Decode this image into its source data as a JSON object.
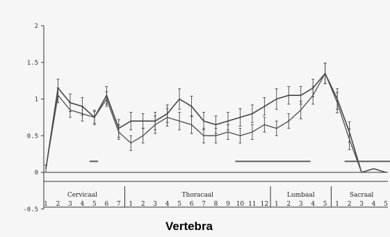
{
  "chart_data": {
    "type": "line",
    "xlabel": "Vertebra",
    "ylabel": "",
    "ylim": [
      -0.5,
      2
    ],
    "yticks": [
      "2",
      "1.5",
      "1",
      "0.5",
      "0",
      "-0.5"
    ],
    "ytick_values": [
      2,
      1.5,
      1,
      0.5,
      0,
      -0.5
    ],
    "grid": false,
    "regions": [
      {
        "name": "Cervicaal",
        "labels": [
          "1",
          "2",
          "3",
          "4",
          "5",
          "6",
          "7"
        ]
      },
      {
        "name": "Thoracaal",
        "labels": [
          "1",
          "2",
          "3",
          "4",
          "5",
          "6",
          "7",
          "8",
          "9",
          "10",
          "11",
          "12"
        ]
      },
      {
        "name": "Lumbaal",
        "labels": [
          "1",
          "2",
          "3",
          "4",
          "5"
        ]
      },
      {
        "name": "Sacraal",
        "labels": [
          "1",
          "2",
          "3",
          "4",
          "5"
        ]
      }
    ],
    "series": [
      {
        "values": [
          0.05,
          1.15,
          0.95,
          0.9,
          0.75,
          1.05,
          0.6,
          0.7,
          0.7,
          0.7,
          0.8,
          1.0,
          0.9,
          0.7,
          0.65,
          0.7,
          0.75,
          0.8,
          0.9,
          1.0,
          1.05,
          1.05,
          1.15,
          1.35,
          1.0,
          0.55,
          0.0,
          0.05,
          0.0
        ],
        "errors": [
          0.05,
          0.12,
          0.12,
          0.12,
          0.1,
          0.12,
          0.12,
          0.12,
          0.1,
          0.12,
          0.12,
          0.14,
          0.14,
          0.12,
          0.12,
          0.12,
          0.12,
          0.12,
          0.12,
          0.14,
          0.12,
          0.12,
          0.12,
          0.14,
          0.14,
          0.14,
          0.0,
          0.0,
          0.0
        ]
      },
      {
        "values": [
          0.05,
          1.05,
          0.85,
          0.8,
          0.75,
          1.0,
          0.55,
          0.4,
          0.5,
          0.65,
          0.75,
          0.7,
          0.65,
          0.5,
          0.5,
          0.55,
          0.5,
          0.55,
          0.65,
          0.6,
          0.7,
          0.85,
          1.05,
          1.35,
          0.95,
          0.45,
          0.0,
          0.05,
          0.0
        ],
        "errors": [
          0.05,
          0.1,
          0.1,
          0.1,
          0.08,
          0.1,
          0.1,
          0.1,
          0.1,
          0.12,
          0.12,
          0.12,
          0.12,
          0.1,
          0.1,
          0.1,
          0.1,
          0.1,
          0.1,
          0.1,
          0.1,
          0.12,
          0.12,
          0.14,
          0.14,
          0.14,
          0.0,
          0.0,
          0.0
        ]
      }
    ],
    "significance_bars": [
      {
        "from": 3.6,
        "to": 4.3,
        "y": 0.15
      },
      {
        "from": 15.6,
        "to": 21.8,
        "y": 0.15
      },
      {
        "from": 24.6,
        "to": 28.4,
        "y": 0.15
      }
    ]
  }
}
